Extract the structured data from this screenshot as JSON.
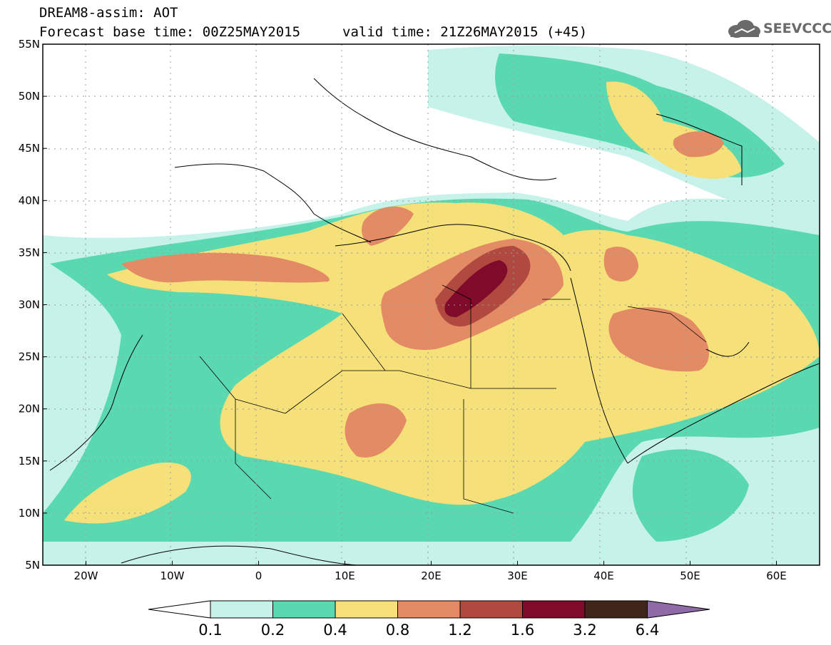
{
  "title": {
    "line1": "DREAM8-assim: AOT",
    "line2": "Forecast base time: 00Z25MAY2015",
    "valid": "valid time: 21Z26MAY2015 (+45)"
  },
  "logo": {
    "text": "SEEVCCC",
    "icon": "cloud-icon"
  },
  "map_data": {
    "variable": "AOT",
    "lon_range": [
      -25,
      65
    ],
    "lat_range": [
      5,
      55
    ],
    "lat_ticks": [
      "55N",
      "50N",
      "45N",
      "40N",
      "35N",
      "30N",
      "25N",
      "20N",
      "15N",
      "10N",
      "5N"
    ],
    "lon_ticks": [
      "20W",
      "10W",
      "0",
      "10E",
      "20E",
      "30E",
      "40E",
      "50E",
      "60E"
    ],
    "colorbar": {
      "levels": [
        "0.1",
        "0.2",
        "0.4",
        "0.8",
        "1.2",
        "1.6",
        "3.2",
        "6.4"
      ],
      "colors": [
        "#ffffff",
        "#c6f2ea",
        "#5ad9b0",
        "#f6e07a",
        "#e38b64",
        "#b04a40",
        "#800a2a",
        "#40261a",
        "#8e6aa6"
      ]
    }
  }
}
